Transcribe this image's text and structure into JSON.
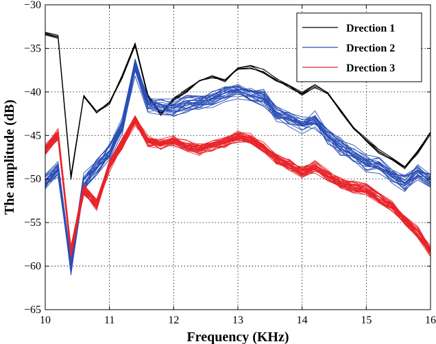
{
  "chart_data": {
    "type": "line",
    "title": "",
    "xlabel": "Frequency (KHz)",
    "ylabel": "The amplitude (dB)",
    "xlim": [
      10,
      16
    ],
    "ylim": [
      -65,
      -30
    ],
    "xticks": [
      10,
      11,
      12,
      13,
      14,
      15,
      16
    ],
    "yticks": [
      -65,
      -60,
      -55,
      -50,
      -45,
      -40,
      -35,
      -30
    ],
    "grid": true,
    "legend_position": "top-right",
    "x": [
      10.0,
      10.2,
      10.4,
      10.6,
      10.8,
      11.0,
      11.2,
      11.4,
      11.6,
      11.8,
      12.0,
      12.2,
      12.4,
      12.6,
      12.8,
      13.0,
      13.2,
      13.4,
      13.6,
      13.8,
      14.0,
      14.2,
      14.4,
      14.6,
      14.8,
      15.0,
      15.2,
      15.4,
      15.6,
      15.8,
      16.0
    ],
    "series": [
      {
        "name": "Drection 1",
        "color": "#000000",
        "values": [
          -33.2,
          -33.6,
          -49.8,
          -40.5,
          -42.3,
          -41.2,
          -38.2,
          -34.5,
          -40.5,
          -42.5,
          -40.8,
          -39.8,
          -38.7,
          -38.2,
          -38.6,
          -37.2,
          -37.1,
          -37.6,
          -38.6,
          -39.3,
          -40.2,
          -39.3,
          -40.1,
          -42.1,
          -44.1,
          -45.5,
          -46.8,
          -47.6,
          -48.6,
          -46.9,
          -44.6
        ]
      },
      {
        "name": "Drection 2",
        "color": "#2b4fb5",
        "values": [
          -50.4,
          -48.8,
          -60.2,
          -50.4,
          -48.7,
          -46.8,
          -43.8,
          -37.1,
          -41.4,
          -41.7,
          -41.8,
          -41.4,
          -41.0,
          -40.8,
          -40.2,
          -39.8,
          -40.2,
          -40.8,
          -42.4,
          -43.1,
          -43.8,
          -43.2,
          -45.1,
          -46.3,
          -47.2,
          -48.1,
          -48.4,
          -49.4,
          -50.4,
          -49.3,
          -50.2
        ]
      },
      {
        "name": "Drection 3",
        "color": "#e8252b",
        "values": [
          -46.6,
          -44.9,
          -58.3,
          -51.2,
          -52.9,
          -48.5,
          -45.9,
          -43.2,
          -45.6,
          -45.9,
          -45.5,
          -46.2,
          -46.6,
          -46.1,
          -45.8,
          -45.1,
          -45.4,
          -46.4,
          -47.6,
          -48.4,
          -49.2,
          -48.6,
          -49.6,
          -50.5,
          -50.9,
          -51.2,
          -52.2,
          -53.2,
          -54.6,
          -56.1,
          -58.2
        ]
      }
    ]
  }
}
